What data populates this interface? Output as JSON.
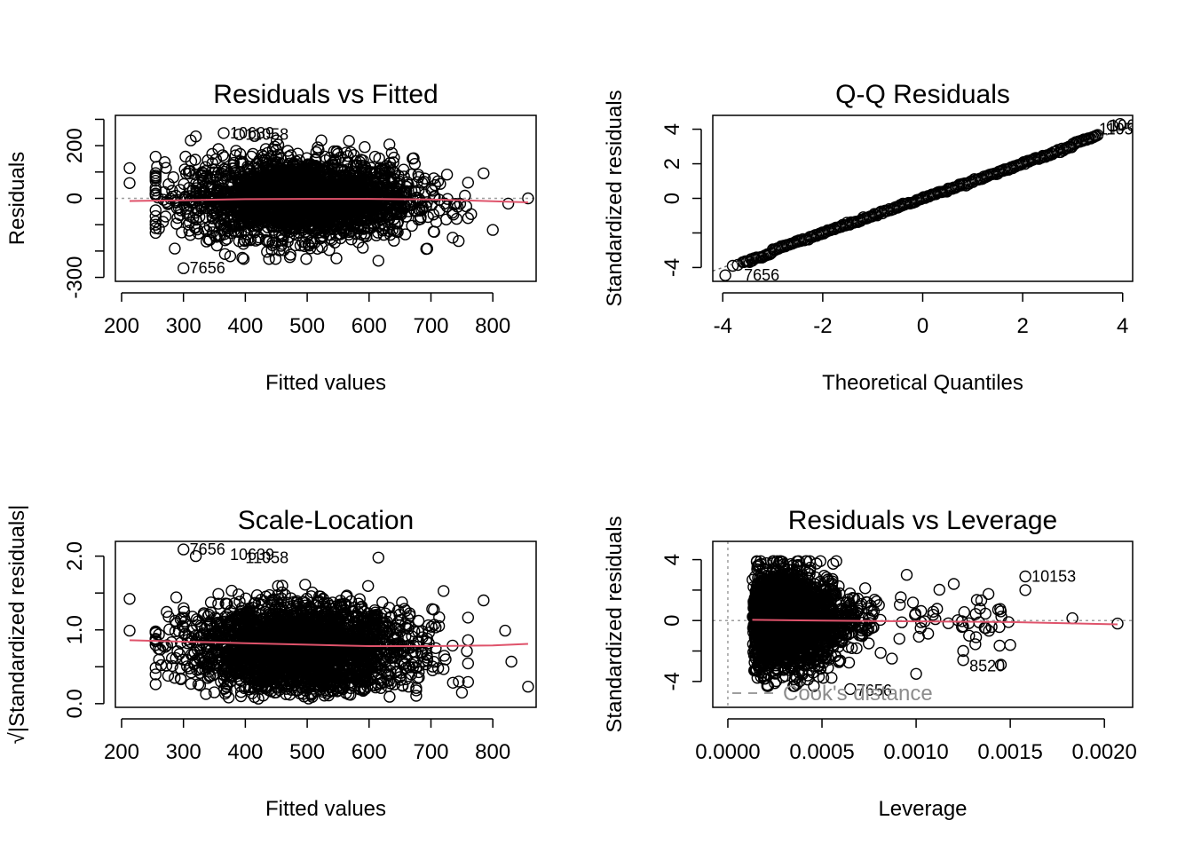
{
  "colors": {
    "points": "#000000",
    "smooth": "#DF536B",
    "reference": "#9e9e9e"
  },
  "chart_data": [
    {
      "type": "scatter",
      "title": "Residuals vs Fitted",
      "xlabel": "Fitted values",
      "ylabel": "Residuals",
      "xlim": [
        190,
        870
      ],
      "ylim": [
        -315,
        315
      ],
      "xticks": [
        200,
        300,
        400,
        500,
        600,
        700,
        800
      ],
      "yticks": [
        -300,
        0,
        200
      ],
      "yminor": [
        -200,
        -100,
        100,
        300
      ],
      "ref_line": {
        "type": "h",
        "value": 0
      },
      "smooth": {
        "x": [
          213,
          300,
          400,
          500,
          600,
          700,
          760,
          857
        ],
        "y": [
          -10,
          -7,
          -3,
          -2,
          -2,
          -4,
          -8,
          -15
        ]
      },
      "cloud": {
        "x_center": 490,
        "x_sd": 90,
        "y_sd": 75
      },
      "outliers": [
        {
          "x": 213,
          "y": 115
        },
        {
          "x": 213,
          "y": 58
        },
        {
          "x": 320,
          "y": 235
        },
        {
          "x": 365,
          "y": 248
        },
        {
          "x": 390,
          "y": 243
        },
        {
          "x": 415,
          "y": 237
        },
        {
          "x": 785,
          "y": 95
        },
        {
          "x": 800,
          "y": -120
        },
        {
          "x": 825,
          "y": -20
        },
        {
          "x": 857,
          "y": 0
        },
        {
          "x": 300,
          "y": -265
        },
        {
          "x": 615,
          "y": -237
        },
        {
          "x": 765,
          "y": -60
        },
        {
          "x": 755,
          "y": 10
        }
      ],
      "labels": [
        {
          "text": "10639",
          "x": 365,
          "y": 248
        },
        {
          "text": "11058",
          "x": 390,
          "y": 243
        },
        {
          "text": "7656",
          "x": 300,
          "y": -265
        }
      ]
    },
    {
      "type": "scatter",
      "title": "Q-Q Residuals",
      "xlabel": "Theoretical Quantiles",
      "ylabel": "Standardized residuals",
      "xlim": [
        -4.2,
        4.2
      ],
      "ylim": [
        -4.8,
        4.8
      ],
      "xticks": [
        -4,
        -2,
        0,
        2,
        4
      ],
      "yticks": [
        -4,
        0,
        2,
        4
      ],
      "yminor": [
        -2
      ],
      "ref_line": {
        "type": "diag",
        "slope": 1.0,
        "intercept": 0
      },
      "outliers": [
        {
          "x": -3.95,
          "y": -4.45
        },
        {
          "x": -3.8,
          "y": -3.9
        },
        {
          "x": -3.7,
          "y": -3.85
        },
        {
          "x": 3.8,
          "y": 4.2
        },
        {
          "x": 3.95,
          "y": 4.3
        }
      ],
      "labels": [
        {
          "text": "10639",
          "x": 3.6,
          "y": 4.2
        },
        {
          "text": "11058",
          "x": 3.4,
          "y": 4.0
        },
        {
          "text": "7656",
          "x": -3.7,
          "y": -4.45
        }
      ]
    },
    {
      "type": "scatter",
      "title": "Scale-Location",
      "xlabel": "Fitted values",
      "ylabel": "√|Standardized residuals|",
      "xlim": [
        190,
        870
      ],
      "ylim": [
        -0.05,
        2.2
      ],
      "xticks": [
        200,
        300,
        400,
        500,
        600,
        700,
        800
      ],
      "yticks": [
        0.0,
        1.0,
        2.0
      ],
      "ytick_labels": [
        "0.0",
        "1.0",
        "2.0"
      ],
      "yminor": [
        0.5,
        1.5
      ],
      "smooth": {
        "x": [
          213,
          300,
          400,
          500,
          600,
          700,
          800,
          857
        ],
        "y": [
          0.86,
          0.84,
          0.82,
          0.8,
          0.78,
          0.78,
          0.79,
          0.81
        ]
      },
      "cloud": {
        "x_center": 490,
        "x_sd": 90
      },
      "outliers": [
        {
          "x": 213,
          "y": 1.42
        },
        {
          "x": 213,
          "y": 0.99
        },
        {
          "x": 300,
          "y": 2.09
        },
        {
          "x": 320,
          "y": 2.0
        },
        {
          "x": 785,
          "y": 1.4
        },
        {
          "x": 820,
          "y": 0.99
        },
        {
          "x": 830,
          "y": 0.57
        },
        {
          "x": 857,
          "y": 0.23
        },
        {
          "x": 750,
          "y": 0.15
        },
        {
          "x": 745,
          "y": 0.3
        },
        {
          "x": 615,
          "y": 1.98
        }
      ],
      "labels": [
        {
          "text": "7656",
          "x": 300,
          "y": 2.09
        },
        {
          "text": "10639",
          "x": 365,
          "y": 2.02
        },
        {
          "text": "11058",
          "x": 390,
          "y": 1.98
        }
      ]
    },
    {
      "type": "scatter",
      "title": "Residuals vs Leverage",
      "xlabel": "Leverage",
      "ylabel": "Standardized residuals",
      "xlim": [
        -8e-05,
        0.00215
      ],
      "ylim": [
        -5.7,
        5.2
      ],
      "xticks": [
        0.0,
        0.0005,
        0.001,
        0.0015,
        0.002
      ],
      "xtick_labels": [
        "0.0000",
        "0.0005",
        "0.0010",
        "0.0015",
        "0.0020"
      ],
      "yticks": [
        -4,
        0,
        4
      ],
      "yminor": [
        -2,
        2
      ],
      "ref_line": {
        "type": "h",
        "value": 0
      },
      "v_ref": 0.0,
      "smooth": {
        "x": [
          0.00013,
          0.0005,
          0.001,
          0.0015,
          0.00207
        ],
        "y": [
          0.05,
          0.0,
          -0.05,
          -0.1,
          -0.25
        ]
      },
      "outliers": [
        {
          "x": 0.00158,
          "y": 2.9
        },
        {
          "x": 0.00158,
          "y": 2.0
        },
        {
          "x": 0.00183,
          "y": 0.15
        },
        {
          "x": 0.00207,
          "y": -0.2
        },
        {
          "x": 0.00145,
          "y": -2.9
        },
        {
          "x": 0.00125,
          "y": -2.0
        },
        {
          "x": 0.00125,
          "y": -2.6
        },
        {
          "x": 0.00145,
          "y": 0.6
        },
        {
          "x": 0.0015,
          "y": -1.6
        },
        {
          "x": 0.00095,
          "y": 3.0
        },
        {
          "x": 0.001,
          "y": -3.5
        },
        {
          "x": 0.00065,
          "y": -4.5
        },
        {
          "x": 0.0012,
          "y": 2.4
        }
      ],
      "labels": [
        {
          "text": "10153",
          "x": 0.00158,
          "y": 2.9
        },
        {
          "text": "8520",
          "x": 0.00125,
          "y": -3.0
        },
        {
          "text": "7656",
          "x": 0.00065,
          "y": -4.6
        }
      ],
      "legend": "Cook's distance"
    }
  ]
}
